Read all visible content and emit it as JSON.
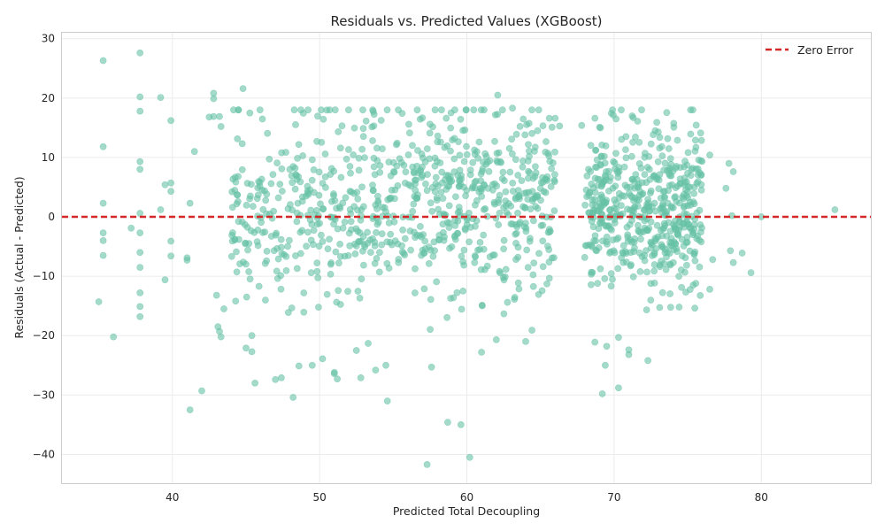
{
  "chart_data": {
    "type": "scatter",
    "title": "Residuals vs. Predicted Values (XGBoost)",
    "xlabel": "Predicted Total Decoupling",
    "ylabel": "Residuals (Actual - Predicted)",
    "xlim": [
      32.5,
      87.5
    ],
    "ylim": [
      -45,
      31
    ],
    "xticks": [
      40,
      50,
      60,
      70,
      80
    ],
    "yticks": [
      -40,
      -30,
      -20,
      -10,
      0,
      10,
      20,
      30
    ],
    "grid": true,
    "legend": {
      "position": "top-right",
      "entries": [
        "Zero Error"
      ]
    },
    "reference_line": {
      "y": 0,
      "label": "Zero Error",
      "style": "dashed",
      "color": "#d62728"
    },
    "point_color": "#66c2a5",
    "point_alpha": 0.6,
    "clusters": [
      {
        "x_range": [
          44,
          52
        ],
        "y_mean": 2,
        "y_sd": 9,
        "count": 240
      },
      {
        "x_range": [
          52,
          66
        ],
        "y_mean": 2,
        "y_sd": 8,
        "count": 560
      },
      {
        "x_range": [
          68,
          76
        ],
        "y_mean": 1,
        "y_sd": 7,
        "count": 520
      }
    ],
    "points": [
      [
        35.3,
        26.3
      ],
      [
        37.8,
        27.6
      ],
      [
        35.3,
        11.8
      ],
      [
        35.3,
        2.3
      ],
      [
        35.3,
        -2.7
      ],
      [
        35.3,
        -4.0
      ],
      [
        35.3,
        -6.5
      ],
      [
        35.0,
        -14.3
      ],
      [
        36.0,
        -20.2
      ],
      [
        37.8,
        20.2
      ],
      [
        37.8,
        17.8
      ],
      [
        37.8,
        9.3
      ],
      [
        37.8,
        8.0
      ],
      [
        37.8,
        0.6
      ],
      [
        37.8,
        -2.7
      ],
      [
        37.8,
        -6.0
      ],
      [
        37.8,
        -8.5
      ],
      [
        37.8,
        -12.8
      ],
      [
        37.8,
        -15.1
      ],
      [
        37.8,
        -16.8
      ],
      [
        37.2,
        -1.9
      ],
      [
        39.2,
        20.1
      ],
      [
        39.9,
        16.2
      ],
      [
        39.5,
        5.4
      ],
      [
        39.9,
        5.7
      ],
      [
        39.9,
        4.3
      ],
      [
        39.2,
        1.2
      ],
      [
        39.9,
        -4.1
      ],
      [
        39.9,
        -6.6
      ],
      [
        39.5,
        -10.6
      ],
      [
        41.2,
        -32.5
      ],
      [
        42.0,
        -29.3
      ],
      [
        41.0,
        -6.9
      ],
      [
        41.0,
        -7.3
      ],
      [
        41.5,
        11.0
      ],
      [
        41.2,
        2.3
      ],
      [
        42.8,
        20.8
      ],
      [
        42.8,
        19.9
      ],
      [
        42.8,
        16.9
      ],
      [
        43.2,
        16.9
      ],
      [
        43.3,
        15.2
      ],
      [
        42.5,
        16.8
      ],
      [
        43.3,
        -20.2
      ],
      [
        43.2,
        -19.3
      ],
      [
        43.1,
        -18.5
      ],
      [
        43.0,
        -13.2
      ],
      [
        43.5,
        -15.5
      ],
      [
        44.8,
        21.6
      ],
      [
        44.3,
        -14.2
      ],
      [
        45.0,
        -22.1
      ],
      [
        45.4,
        -20.0
      ],
      [
        45.4,
        -22.7
      ],
      [
        47.0,
        -27.4
      ],
      [
        47.4,
        -27.1
      ],
      [
        48.2,
        -30.4
      ],
      [
        48.6,
        -25.1
      ],
      [
        49.5,
        -25.0
      ],
      [
        50.2,
        -23.9
      ],
      [
        51.0,
        -26.4
      ],
      [
        51.2,
        -27.3
      ],
      [
        51.0,
        -26.2
      ],
      [
        52.5,
        -22.5
      ],
      [
        52.8,
        -27.1
      ],
      [
        53.3,
        -21.3
      ],
      [
        53.8,
        -25.8
      ],
      [
        54.5,
        -25.0
      ],
      [
        54.6,
        -31.0
      ],
      [
        57.3,
        -41.7
      ],
      [
        57.6,
        -25.3
      ],
      [
        58.7,
        -34.6
      ],
      [
        59.6,
        -35.0
      ],
      [
        60.2,
        -40.5
      ],
      [
        62.0,
        -20.7
      ],
      [
        61.0,
        -22.8
      ],
      [
        64.0,
        -21.0
      ],
      [
        62.1,
        20.5
      ],
      [
        63.1,
        18.3
      ],
      [
        58.6,
        16.6
      ],
      [
        57.5,
        15.6
      ],
      [
        65.6,
        16.6
      ],
      [
        66.0,
        16.6
      ],
      [
        66.3,
        15.3
      ],
      [
        67.8,
        15.4
      ],
      [
        68.7,
        16.6
      ],
      [
        69.2,
        -29.8
      ],
      [
        70.3,
        -28.8
      ],
      [
        69.4,
        -25.0
      ],
      [
        72.3,
        -24.2
      ],
      [
        71.0,
        -23.2
      ],
      [
        71.0,
        -22.4
      ],
      [
        68.7,
        -21.1
      ],
      [
        69.5,
        -21.8
      ],
      [
        70.3,
        -20.3
      ],
      [
        71.3,
        16.7
      ],
      [
        71.6,
        16.1
      ],
      [
        72.9,
        15.9
      ],
      [
        73.0,
        14.3
      ],
      [
        74.3,
        12.9
      ],
      [
        76.5,
        10.4
      ],
      [
        77.8,
        9.0
      ],
      [
        78.1,
        7.6
      ],
      [
        76.7,
        -7.2
      ],
      [
        77.9,
        -5.7
      ],
      [
        78.1,
        -7.7
      ],
      [
        79.3,
        -9.4
      ],
      [
        78.7,
        -6.1
      ],
      [
        76.5,
        -12.2
      ],
      [
        77.6,
        4.8
      ],
      [
        78.0,
        0.2
      ],
      [
        85.0,
        1.2
      ],
      [
        80.0,
        0.0
      ]
    ]
  }
}
